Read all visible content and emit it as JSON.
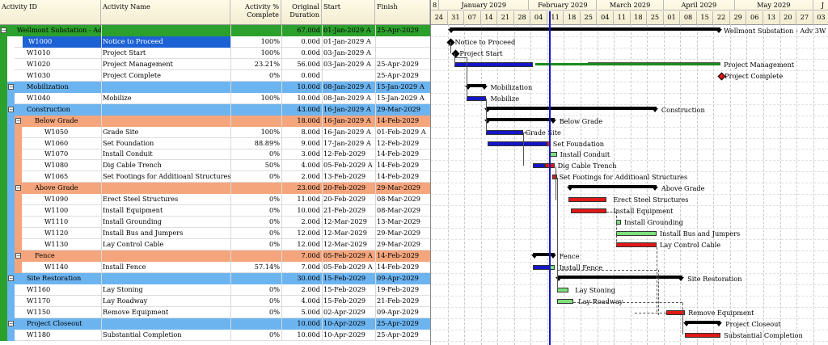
{
  "columns": {
    "id": "Activity ID",
    "name": "Activity Name",
    "pct": "Activity % Complete",
    "dur": "Original Duration",
    "start": "Start",
    "finish": "Finish"
  },
  "rows": [
    {
      "type": "project",
      "id": "Wellmont Substation - Adv 3W",
      "name": "",
      "pct": "",
      "dur": "67.00d",
      "start": "01-Jan-2029 A",
      "finish": "25-Apr-2029"
    },
    {
      "type": "task",
      "id": "W1000",
      "name": "Notice to Proceed",
      "pct": "100%",
      "dur": "0.00d",
      "start": "01-Jan-2029 A",
      "finish": "",
      "selected": true
    },
    {
      "type": "task",
      "id": "W1010",
      "name": "Project Start",
      "pct": "100%",
      "dur": "0.00d",
      "start": "03-Jan-2029 A",
      "finish": ""
    },
    {
      "type": "task",
      "id": "W1020",
      "name": "Project Management",
      "pct": "23.21%",
      "dur": "56.00d",
      "start": "03-Jan-2029 A",
      "finish": "25-Apr-2029"
    },
    {
      "type": "task",
      "id": "W1030",
      "name": "Project Complete",
      "pct": "0%",
      "dur": "0.00d",
      "start": "",
      "finish": "25-Apr-2029"
    },
    {
      "type": "wbs1",
      "id": "Mobilization",
      "name": "",
      "pct": "",
      "dur": "10.00d",
      "start": "08-Jan-2029 A",
      "finish": "15-Jan-2029 A"
    },
    {
      "type": "task",
      "id": "W1040",
      "name": "Mobilize",
      "pct": "100%",
      "dur": "10.00d",
      "start": "08-Jan-2029 A",
      "finish": "15-Jan-2029 A"
    },
    {
      "type": "wbs1",
      "id": "Construction",
      "name": "",
      "pct": "",
      "dur": "43.00d",
      "start": "16-Jan-2029 A",
      "finish": "29-Mar-2029"
    },
    {
      "type": "wbs2",
      "id": "Below Grade",
      "name": "",
      "pct": "",
      "dur": "18.00d",
      "start": "16-Jan-2029 A",
      "finish": "14-Feb-2029"
    },
    {
      "type": "task2",
      "id": "W1050",
      "name": "Grade Site",
      "pct": "100%",
      "dur": "8.00d",
      "start": "16-Jan-2029 A",
      "finish": "01-Feb-2029 A"
    },
    {
      "type": "task2",
      "id": "W1060",
      "name": "Set Foundation",
      "pct": "88.89%",
      "dur": "9.00d",
      "start": "17-Jan-2029 A",
      "finish": "12-Feb-2029"
    },
    {
      "type": "task2",
      "id": "W1070",
      "name": "Install Conduit",
      "pct": "0%",
      "dur": "3.00d",
      "start": "12-Feb-2029",
      "finish": "14-Feb-2029"
    },
    {
      "type": "task2",
      "id": "W1080",
      "name": "Dig Cable Trench",
      "pct": "50%",
      "dur": "4.00d",
      "start": "05-Feb-2029 A",
      "finish": "14-Feb-2029"
    },
    {
      "type": "task2",
      "id": "W1065",
      "name": "Set Footings for Additioanl Structures",
      "pct": "0%",
      "dur": "2.00d",
      "start": "13-Feb-2029",
      "finish": "14-Feb-2029"
    },
    {
      "type": "wbs2",
      "id": "Above Grade",
      "name": "",
      "pct": "",
      "dur": "23.00d",
      "start": "20-Feb-2029",
      "finish": "29-Mar-2029"
    },
    {
      "type": "task2",
      "id": "W1090",
      "name": "Erect Steel Structures",
      "pct": "0%",
      "dur": "11.00d",
      "start": "20-Feb-2029",
      "finish": "08-Mar-2029"
    },
    {
      "type": "task2",
      "id": "W1100",
      "name": "Install Equipment",
      "pct": "0%",
      "dur": "10.00d",
      "start": "21-Feb-2029",
      "finish": "08-Mar-2029"
    },
    {
      "type": "task2",
      "id": "W1110",
      "name": "Install Grounding",
      "pct": "0%",
      "dur": "2.00d",
      "start": "12-Mar-2029",
      "finish": "13-Mar-2029"
    },
    {
      "type": "task2",
      "id": "W1120",
      "name": "Install Bus and Jumpers",
      "pct": "0%",
      "dur": "12.00d",
      "start": "12-Mar-2029",
      "finish": "29-Mar-2029"
    },
    {
      "type": "task2",
      "id": "W1130",
      "name": "Lay Control Cable",
      "pct": "0%",
      "dur": "12.00d",
      "start": "12-Mar-2029",
      "finish": "29-Mar-2029"
    },
    {
      "type": "wbs2",
      "id": "Fence",
      "name": "",
      "pct": "",
      "dur": "7.00d",
      "start": "05-Feb-2029 A",
      "finish": "14-Feb-2029"
    },
    {
      "type": "task2",
      "id": "W1140",
      "name": "Install Fence",
      "pct": "57.14%",
      "dur": "7.00d",
      "start": "05-Feb-2029 A",
      "finish": "14-Feb-2029"
    },
    {
      "type": "wbs1",
      "id": "Site Restoration",
      "name": "",
      "pct": "",
      "dur": "30.00d",
      "start": "15-Feb-2029",
      "finish": "09-Apr-2029"
    },
    {
      "type": "task",
      "id": "W1160",
      "name": "Lay Stoning",
      "pct": "0%",
      "dur": "2.00d",
      "start": "15-Feb-2029",
      "finish": "19-Feb-2029"
    },
    {
      "type": "task",
      "id": "W1170",
      "name": "Lay Roadway",
      "pct": "0%",
      "dur": "4.00d",
      "start": "15-Feb-2029",
      "finish": "21-Feb-2029"
    },
    {
      "type": "task",
      "id": "W1150",
      "name": "Remove Equipment",
      "pct": "0%",
      "dur": "5.00d",
      "start": "02-Apr-2029",
      "finish": "09-Apr-2029"
    },
    {
      "type": "wbs1",
      "id": "Project Closeout",
      "name": "",
      "pct": "",
      "dur": "10.00d",
      "start": "10-Apr-2029",
      "finish": "25-Apr-2029"
    },
    {
      "type": "task",
      "id": "W1180",
      "name": "Substantial Completion",
      "pct": "0%",
      "dur": "10.00d",
      "start": "10-Apr-2029",
      "finish": "25-Apr-2029"
    }
  ],
  "timescale": {
    "months": [
      {
        "label": "8"
      },
      {
        "label": "January 2029"
      },
      {
        "label": "February 2029"
      },
      {
        "label": "March 2029"
      },
      {
        "label": "April 2029"
      },
      {
        "label": "May 2029"
      },
      {
        "label": "J"
      }
    ],
    "weeks": [
      "24",
      "31",
      "07",
      "14",
      "21",
      "28",
      "04",
      "11",
      "18",
      "25",
      "04",
      "11",
      "18",
      "25",
      "01",
      "08",
      "15",
      "22",
      "29",
      "06",
      "13",
      "20",
      "27",
      "03"
    ]
  },
  "gantt": {
    "labels": {
      "project": "Wellmont Substation - Adv 3W",
      "ntp": "Notice to Proceed",
      "start": "Project Start",
      "pm": "Project Management",
      "complete": "Project Complete",
      "mobilization": "Mobilization",
      "mobilize": "Mobilize",
      "construction": "Construction",
      "below": "Below Grade",
      "grade": "Grade Site",
      "foundation": "Set Foundation",
      "conduit": "Install Conduit",
      "trench": "Dig Cable Trench",
      "footings": "Set Footings for Additioanl Structures",
      "above": "Above Grade",
      "steel": "Erect Steel Structures",
      "equipment": "Install Equipment",
      "grounding": "Install Grounding",
      "bus": "Install Bus and Jumpers",
      "cable": "Lay Control Cable",
      "fence": "Fence",
      "installfence": "Install Fence",
      "restoration": "Site Restoration",
      "stoning": "Lay Stoning",
      "roadway": "Lay Roadway",
      "remove": "Remove Equipment",
      "closeout": "Project Closeout",
      "substantial": "Substantial Completion"
    }
  },
  "colors": {
    "project": "#2ca02c",
    "wbs1": "#6cb4f0",
    "wbs2": "#f4a57c",
    "actual": "#1515c8",
    "remaining": "#e01818",
    "noncritical": "#7de07d",
    "pmbar": "#1a8c1a"
  }
}
